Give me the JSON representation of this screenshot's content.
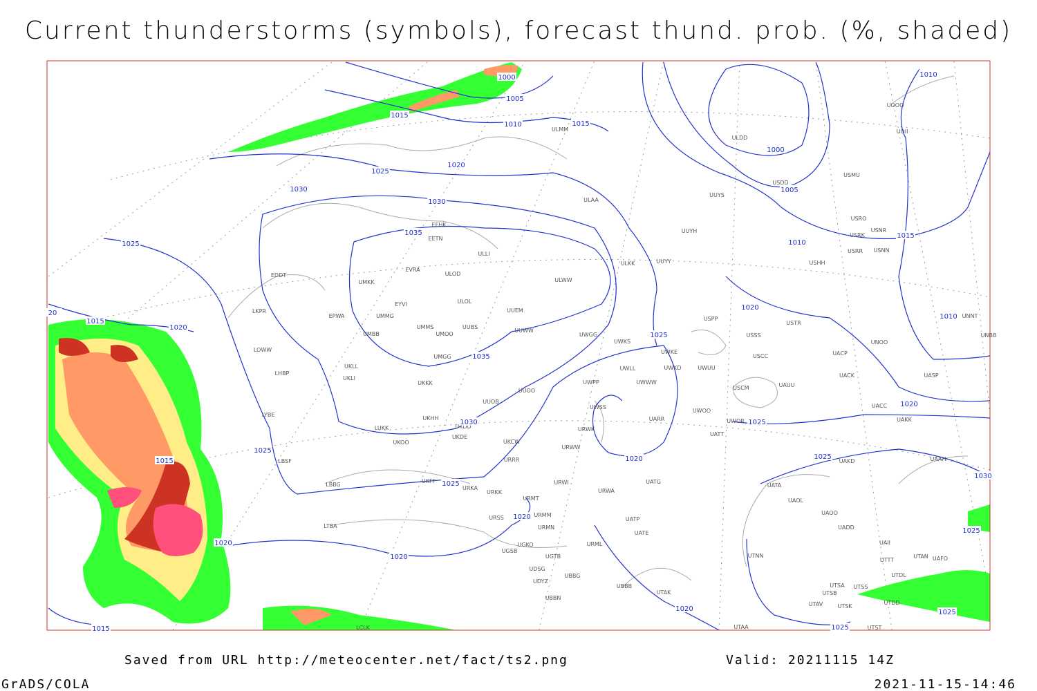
{
  "header": {
    "title": "Current thunderstorms (symbols), forecast thund. prob. (%, shaded)"
  },
  "footer": {
    "saved_from": "Saved from URL http://meteocenter.net/fact/ts2.png",
    "valid": "Valid: 20211115 14Z",
    "software": "GrADS/COLA",
    "timestamp": "2021-11-15-14:46"
  },
  "stations": [
    "EFHK",
    "EETN",
    "EVRA",
    "ULOD",
    "UMKK",
    "EYVI",
    "ULOL",
    "UUEM",
    "EPWA",
    "UMMG",
    "UMMS",
    "UMOO",
    "UUBS",
    "UUWW",
    "UMGG",
    "UMBB",
    "EDDT",
    "LKPR",
    "LOWW",
    "LHBP",
    "UKLL",
    "UKLI",
    "UKKK",
    "UUOO",
    "UUOB",
    "LYBE",
    "LUKK",
    "UKHH",
    "UKDD",
    "UKDE",
    "UKOO",
    "LBSF",
    "UKCW",
    "URRR",
    "UKFF",
    "URKA",
    "URKK",
    "LBBG",
    "URMT",
    "URMM",
    "URSS",
    "URMN",
    "LTBA",
    "UGKO",
    "UGSB",
    "UGTB",
    "UDSG",
    "UBBG",
    "UDYZ",
    "UBBN",
    "URML",
    "UBBB",
    "UATG",
    "URWA",
    "URWI",
    "UATP",
    "UATE",
    "UTAK",
    "UTAA",
    "UTNN",
    "UATA",
    "UAOL",
    "UAOO",
    "UAII",
    "UTTT",
    "UTDL",
    "UTAN",
    "UAFO",
    "UTSA",
    "UTSB",
    "UTSS",
    "UTSK",
    "UTAV",
    "UTDD",
    "UTST",
    "UADD",
    "UAAH",
    "UAKD",
    "UAKK",
    "UACC",
    "UASP",
    "UACK",
    "UACP",
    "USCC",
    "USSS",
    "USTR",
    "UNOO",
    "UNBB",
    "UNNT",
    "USCM",
    "UAUU",
    "UWOO",
    "UWOR",
    "UATT",
    "UARR",
    "UWSS",
    "UWPP",
    "UWWW",
    "UWLL",
    "UWKS",
    "UWKE",
    "UWKD",
    "UWUU",
    "UWGG",
    "URWW",
    "URWK",
    "UUYY",
    "ULKK",
    "UUYH",
    "ULAA",
    "ULWW",
    "ULLI",
    "ULMM",
    "UUYS",
    "USMU",
    "USDD",
    "ULDD",
    "UOOO",
    "UOII",
    "USRO",
    "USRK",
    "USNR",
    "USRR",
    "USNN",
    "USHH",
    "USPP",
    "LCLK"
  ],
  "isobar_labels": [
    1000,
    1005,
    1010,
    1015,
    1015,
    1020,
    1025,
    1030,
    1030,
    1035,
    1025,
    1015,
    1020,
    20,
    1000,
    1005,
    1010,
    1010,
    1015,
    1010,
    1020,
    1025,
    1035,
    1030,
    1025,
    1015,
    1025,
    1020,
    1020,
    1020,
    1020,
    1025,
    1020,
    1025,
    1030,
    1025,
    1025,
    1025,
    1020,
    1015
  ]
}
